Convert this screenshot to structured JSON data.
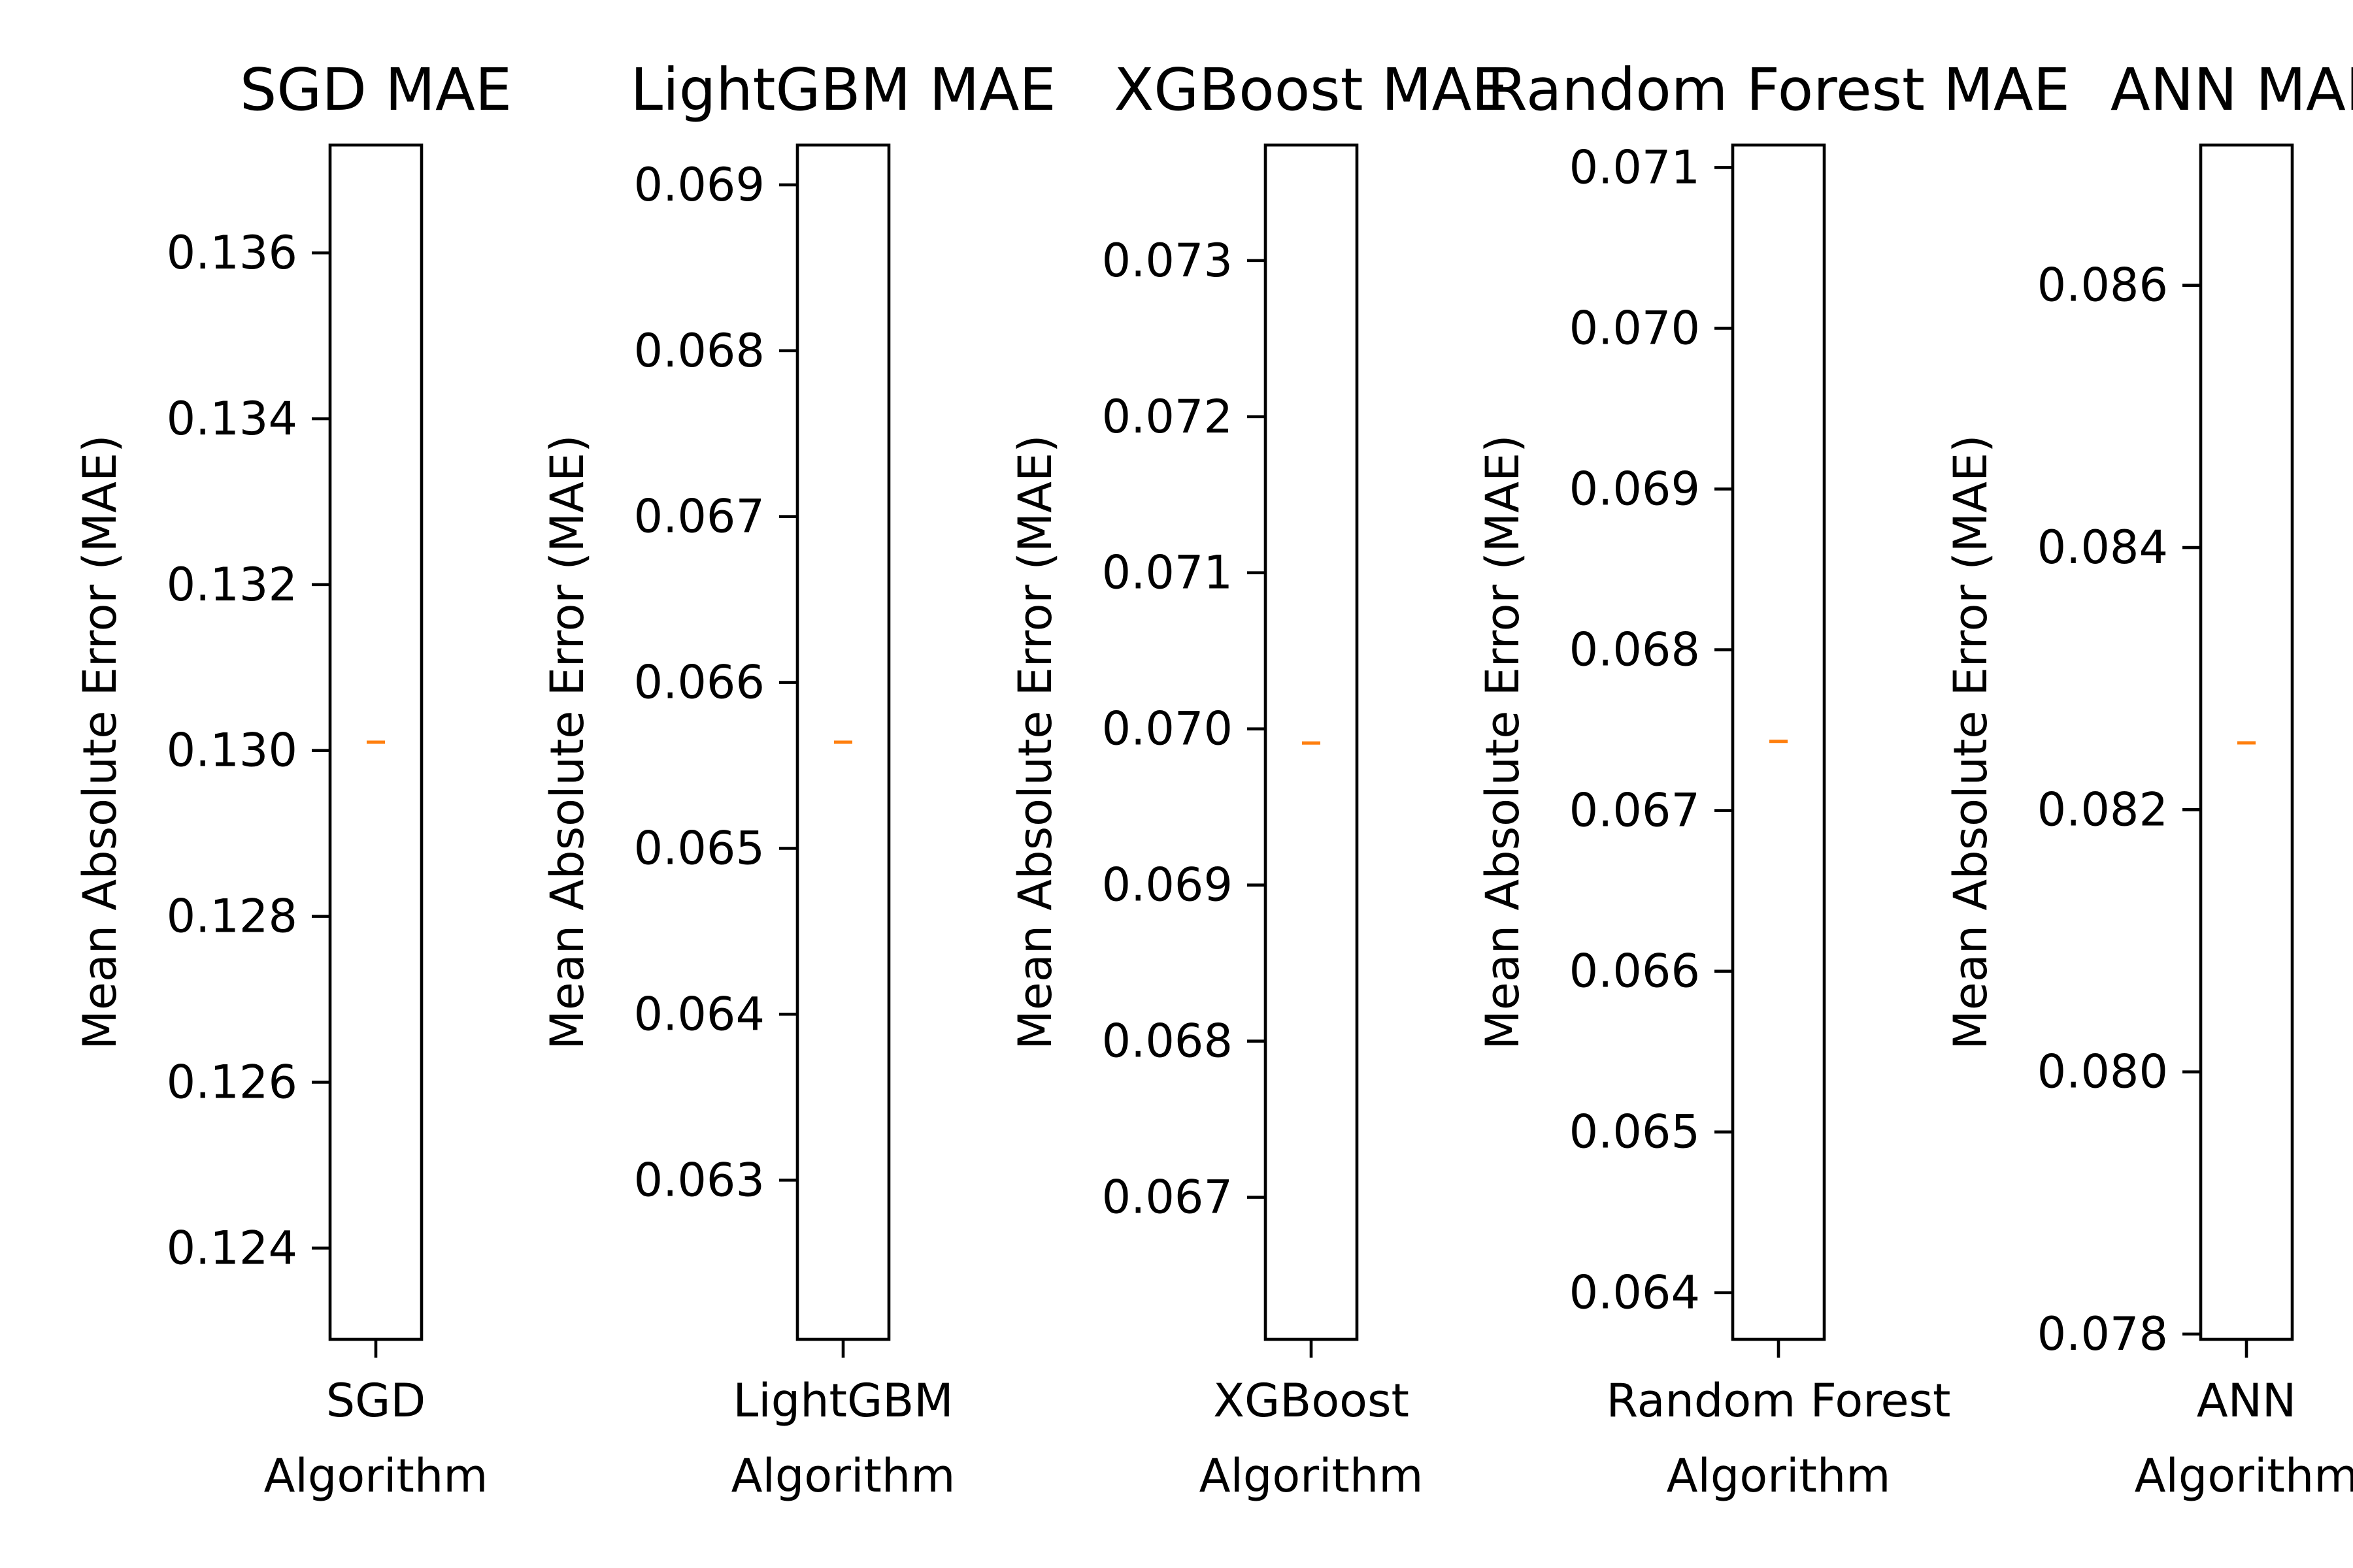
{
  "chart_data": [
    {
      "type": "box",
      "title": "SGD MAE",
      "category": "SGD",
      "xlabel": "Algorithm",
      "ylabel": "Mean Absolute Error (MAE)",
      "yticks": [
        0.124,
        0.126,
        0.128,
        0.13,
        0.132,
        0.134,
        0.136
      ],
      "ytick_labels": [
        "0.124",
        "0.126",
        "0.128",
        "0.130",
        "0.132",
        "0.134",
        "0.136"
      ],
      "ylim": [
        0.1229,
        0.1373
      ],
      "median": 0.1301,
      "median_color": "#ff7f0e"
    },
    {
      "type": "box",
      "title": "LightGBM MAE",
      "category": "LightGBM",
      "xlabel": "Algorithm",
      "ylabel": "Mean Absolute Error (MAE)",
      "yticks": [
        0.063,
        0.064,
        0.065,
        0.066,
        0.067,
        0.068,
        0.069
      ],
      "ytick_labels": [
        "0.063",
        "0.064",
        "0.065",
        "0.066",
        "0.067",
        "0.068",
        "0.069"
      ],
      "ylim": [
        0.06204,
        0.06924
      ],
      "median": 0.06564,
      "median_color": "#ff7f0e"
    },
    {
      "type": "box",
      "title": "XGBoost MAE",
      "category": "XGBoost",
      "xlabel": "Algorithm",
      "ylabel": "Mean Absolute Error (MAE)",
      "yticks": [
        0.067,
        0.068,
        0.069,
        0.07,
        0.071,
        0.072,
        0.073
      ],
      "ytick_labels": [
        "0.067",
        "0.068",
        "0.069",
        "0.070",
        "0.071",
        "0.072",
        "0.073"
      ],
      "ylim": [
        0.06609,
        0.07374
      ],
      "median": 0.06991,
      "median_color": "#ff7f0e"
    },
    {
      "type": "box",
      "title": "Random Forest MAE",
      "category": "Random Forest",
      "xlabel": "Algorithm",
      "ylabel": "Mean Absolute Error (MAE)",
      "yticks": [
        0.064,
        0.065,
        0.066,
        0.067,
        0.068,
        0.069,
        0.07,
        0.071
      ],
      "ytick_labels": [
        "0.064",
        "0.065",
        "0.066",
        "0.067",
        "0.068",
        "0.069",
        "0.070",
        "0.071"
      ],
      "ylim": [
        0.06371,
        0.07114
      ],
      "median": 0.06743,
      "median_color": "#ff7f0e"
    },
    {
      "type": "box",
      "title": "ANN MAE",
      "category": "ANN",
      "xlabel": "Algorithm",
      "ylabel": "Mean Absolute Error (MAE)",
      "yticks": [
        0.078,
        0.08,
        0.082,
        0.084,
        0.086
      ],
      "ytick_labels": [
        "0.078",
        "0.080",
        "0.082",
        "0.084",
        "0.086"
      ],
      "ylim": [
        0.07796,
        0.08707
      ],
      "median": 0.08251,
      "median_color": "#ff7f0e"
    }
  ]
}
